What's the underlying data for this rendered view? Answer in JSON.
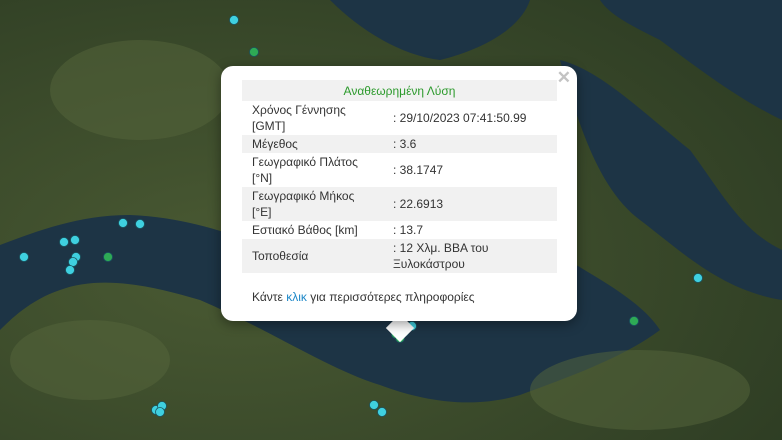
{
  "popup": {
    "title": "Αναθεωρημένη Λύση",
    "close_icon": "close-icon",
    "rows": [
      {
        "label": "Χρόνος Γέννησης [GMT]",
        "value": ": 29/10/2023 07:41:50.99"
      },
      {
        "label": "Μέγεθος",
        "value": ": 3.6"
      },
      {
        "label": "Γεωγραφικό Πλάτος [°N]",
        "value": ": 38.1747"
      },
      {
        "label": "Γεωγραφικό Μήκος [°E]",
        "value": ": 22.6913"
      },
      {
        "label": "Εστιακό Βάθος [km]",
        "value": ": 13.7"
      },
      {
        "label": "Τοποθεσία",
        "value": ": 12 Χλμ. ΒΒΑ του Ξυλοκάστρου"
      }
    ],
    "footer_pre": "Κάντε",
    "footer_link": "κλικ",
    "footer_post": "για περισσότερες πληροφορίες"
  },
  "colors": {
    "title_green": "#2c9a2c",
    "link_blue": "#1e88c8",
    "marker_cyan": "#3fd0e0",
    "marker_green": "#2eaa55"
  }
}
